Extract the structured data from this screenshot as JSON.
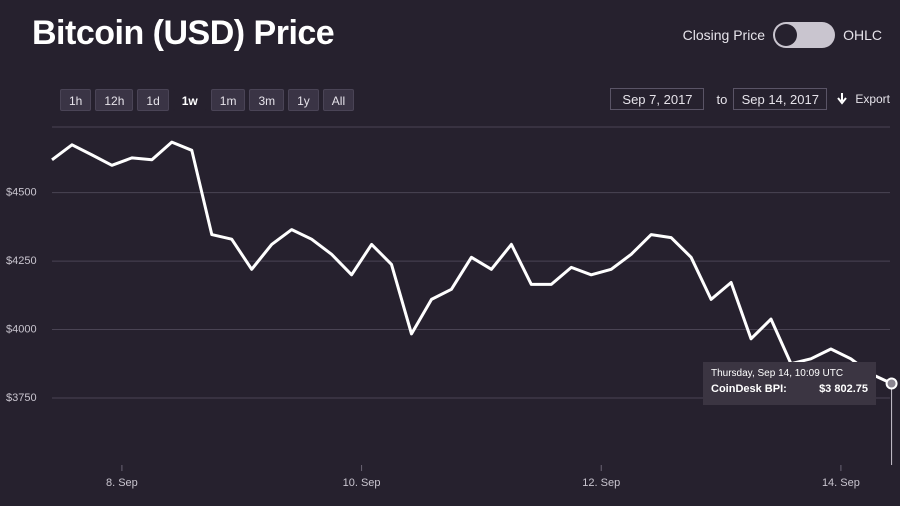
{
  "chart_data": {
    "type": "line",
    "title": "Bitcoin (USD) Price",
    "color": "#ffffff",
    "x": [
      "2017-09-07 10:00",
      "2017-09-07 14:00",
      "2017-09-07 18:00",
      "2017-09-07 22:00",
      "2017-09-08 02:00",
      "2017-09-08 06:00",
      "2017-09-08 10:00",
      "2017-09-08 14:00",
      "2017-09-08 18:00",
      "2017-09-08 22:00",
      "2017-09-09 02:00",
      "2017-09-09 06:00",
      "2017-09-09 10:00",
      "2017-09-09 14:00",
      "2017-09-09 18:00",
      "2017-09-09 22:00",
      "2017-09-10 02:00",
      "2017-09-10 06:00",
      "2017-09-10 10:00",
      "2017-09-10 14:00",
      "2017-09-10 18:00",
      "2017-09-10 22:00",
      "2017-09-11 02:00",
      "2017-09-11 06:00",
      "2017-09-11 10:00",
      "2017-09-11 14:00",
      "2017-09-11 18:00",
      "2017-09-11 22:00",
      "2017-09-12 02:00",
      "2017-09-12 06:00",
      "2017-09-12 10:00",
      "2017-09-12 14:00",
      "2017-09-12 18:00",
      "2017-09-12 22:00",
      "2017-09-13 02:00",
      "2017-09-13 06:00",
      "2017-09-13 10:00",
      "2017-09-13 14:00",
      "2017-09-13 18:00",
      "2017-09-13 22:00",
      "2017-09-14 02:00",
      "2017-09-14 06:00",
      "2017-09-14 10:09"
    ],
    "values": [
      4620,
      4675,
      4638,
      4600,
      4627,
      4620,
      4685,
      4655,
      4347,
      4330,
      4220,
      4311,
      4365,
      4330,
      4275,
      4200,
      4311,
      4238,
      3984,
      4110,
      4147,
      4264,
      4220,
      4311,
      4165,
      4165,
      4227,
      4200,
      4220,
      4275,
      4347,
      4336,
      4264,
      4110,
      4172,
      3966,
      4038,
      3875,
      3893,
      3929,
      3893,
      3838,
      3802.75
    ],
    "xlim": [
      "2017-09-07 10:00",
      "2017-09-14 09:50"
    ],
    "xticks": [
      {
        "value": "2017-09-08 00:00",
        "label": "8. Sep"
      },
      {
        "value": "2017-09-10 00:00",
        "label": "10. Sep"
      },
      {
        "value": "2017-09-12 00:00",
        "label": "12. Sep"
      },
      {
        "value": "2017-09-14 00:00",
        "label": "14. Sep"
      }
    ],
    "ylim": [
      3505,
      4740
    ],
    "yticks": [
      {
        "value": 3750,
        "label": "$3750"
      },
      {
        "value": 4000,
        "label": "$4000"
      },
      {
        "value": 4250,
        "label": "$4250"
      },
      {
        "value": 4500,
        "label": "$4500"
      }
    ],
    "grid": true,
    "tooltip": {
      "date": "Thursday, Sep 14, 10:09 UTC",
      "label": "CoinDesk BPI:",
      "value_label": "$3 802.75"
    }
  },
  "toggle": {
    "left": "Closing Price",
    "right": "OHLC"
  },
  "ranges": {
    "buttons": [
      "1h",
      "12h",
      "1d",
      "1w",
      "1m",
      "3m",
      "1y",
      "All"
    ],
    "active": "1w"
  },
  "date_range": {
    "from": "Sep 7, 2017",
    "separator": "to",
    "to": "Sep 14, 2017"
  },
  "export": "Export"
}
